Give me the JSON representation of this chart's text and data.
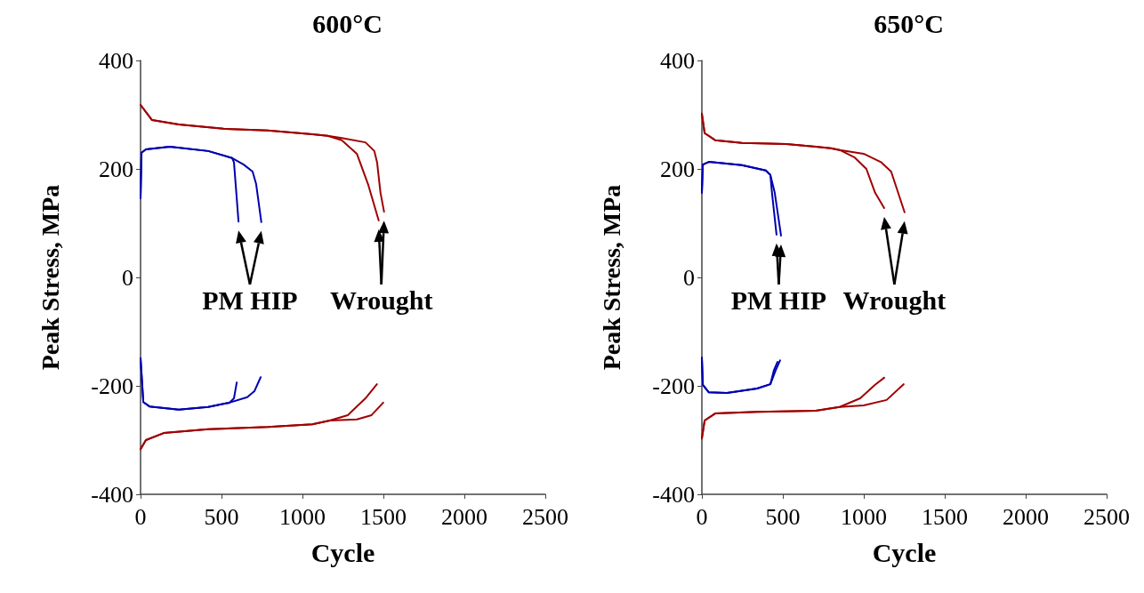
{
  "chart_data": [
    {
      "type": "line",
      "title": "600°C",
      "xlabel": "Cycle",
      "ylabel": "Peak Stress, MPa",
      "xlim": [
        0,
        2500
      ],
      "xticks": [
        0,
        500,
        1000,
        1500,
        2000,
        2500
      ],
      "ylim": [
        -400,
        400
      ],
      "yticks": [
        -400,
        -200,
        0,
        200,
        400
      ],
      "grid": false,
      "marker": "none",
      "line_style": "solid",
      "annotations": [
        "PM HIP",
        "Wrought"
      ],
      "series": [
        {
          "color": "#0000b0",
          "x": [
            0,
            6,
            33,
            181,
            418,
            566,
            577,
            594,
            605
          ],
          "values": [
            146,
            230,
            236,
            241,
            233,
            220,
            212,
            146,
            103
          ]
        },
        {
          "color": "#0000b0",
          "x": [
            0,
            6,
            33,
            181,
            418,
            566,
            637,
            692,
            714,
            746
          ],
          "values": [
            146,
            230,
            236,
            241,
            233,
            220,
            208,
            195,
            172,
            102
          ]
        },
        {
          "color": "#a00000",
          "x": [
            0,
            71,
            236,
            512,
            786,
            1061,
            1155,
            1243,
            1336,
            1405,
            1471
          ],
          "values": [
            318,
            290,
            282,
            274,
            271,
            264,
            261,
            253,
            228,
            172,
            105
          ]
        },
        {
          "color": "#a00000",
          "x": [
            0,
            71,
            236,
            512,
            786,
            1061,
            1155,
            1243,
            1389,
            1444,
            1461,
            1482,
            1504
          ],
          "values": [
            318,
            290,
            282,
            274,
            271,
            264,
            261,
            257,
            249,
            233,
            212,
            156,
            121
          ]
        },
        {
          "color": "#0000b0",
          "x": [
            0,
            17,
            55,
            236,
            418,
            549,
            577,
            594
          ],
          "values": [
            -149,
            -230,
            -238,
            -244,
            -239,
            -231,
            -223,
            -194
          ]
        },
        {
          "color": "#0000b0",
          "x": [
            0,
            17,
            55,
            236,
            418,
            549,
            659,
            703,
            742
          ],
          "values": [
            -149,
            -230,
            -238,
            -244,
            -239,
            -231,
            -221,
            -210,
            -184
          ]
        },
        {
          "color": "#a00000",
          "x": [
            0,
            33,
            143,
            418,
            786,
            1061,
            1169,
            1280,
            1389,
            1460
          ],
          "values": [
            -317,
            -300,
            -287,
            -280,
            -276,
            -271,
            -264,
            -254,
            -223,
            -197
          ]
        },
        {
          "color": "#a00000",
          "x": [
            0,
            33,
            143,
            418,
            786,
            1061,
            1169,
            1336,
            1427,
            1499
          ],
          "values": [
            -317,
            -300,
            -287,
            -280,
            -276,
            -271,
            -264,
            -262,
            -254,
            -231
          ]
        }
      ]
    },
    {
      "type": "line",
      "title": "650°C",
      "xlabel": "Cycle",
      "ylabel": "Peak Stress, MPa",
      "xlim": [
        0,
        2500
      ],
      "xticks": [
        0,
        500,
        1000,
        1500,
        2000,
        2500
      ],
      "ylim": [
        -400,
        400
      ],
      "yticks": [
        -400,
        -200,
        0,
        200,
        400
      ],
      "grid": false,
      "marker": "none",
      "line_style": "solid",
      "annotations": [
        "PM HIP",
        "Wrought"
      ],
      "series": [
        {
          "color": "#0000b0",
          "x": [
            0,
            6,
            43,
            247,
            395,
            423,
            433,
            461
          ],
          "values": [
            156,
            208,
            213,
            207,
            197,
            189,
            156,
            79
          ]
        },
        {
          "color": "#0000b0",
          "x": [
            0,
            6,
            43,
            247,
            395,
            423,
            450,
            489
          ],
          "values": [
            156,
            208,
            213,
            207,
            197,
            189,
            156,
            77
          ]
        },
        {
          "color": "#a00000",
          "x": [
            0,
            17,
            82,
            247,
            521,
            703,
            796,
            851,
            944,
            1016,
            1070,
            1126
          ],
          "values": [
            302,
            266,
            253,
            248,
            246,
            241,
            238,
            235,
            221,
            200,
            156,
            128
          ]
        },
        {
          "color": "#a00000",
          "x": [
            0,
            17,
            82,
            247,
            521,
            703,
            796,
            851,
            999,
            1109,
            1169,
            1252
          ],
          "values": [
            302,
            266,
            253,
            248,
            246,
            241,
            238,
            235,
            228,
            212,
            195,
            120
          ]
        },
        {
          "color": "#0000b0",
          "x": [
            0,
            6,
            43,
            154,
            341,
            423,
            444,
            467
          ],
          "values": [
            -148,
            -198,
            -212,
            -213,
            -205,
            -197,
            -172,
            -156
          ]
        },
        {
          "color": "#0000b0",
          "x": [
            0,
            6,
            43,
            154,
            341,
            423,
            455,
            483
          ],
          "values": [
            -148,
            -198,
            -212,
            -213,
            -205,
            -197,
            -172,
            -153
          ]
        },
        {
          "color": "#a00000",
          "x": [
            0,
            17,
            82,
            341,
            703,
            851,
            978,
            1070,
            1126
          ],
          "values": [
            -297,
            -264,
            -251,
            -248,
            -246,
            -239,
            -223,
            -198,
            -185
          ]
        },
        {
          "color": "#a00000",
          "x": [
            0,
            17,
            82,
            341,
            703,
            851,
            999,
            1141,
            1246
          ],
          "values": [
            -297,
            -264,
            -251,
            -248,
            -246,
            -239,
            -236,
            -226,
            -197
          ]
        }
      ]
    }
  ]
}
